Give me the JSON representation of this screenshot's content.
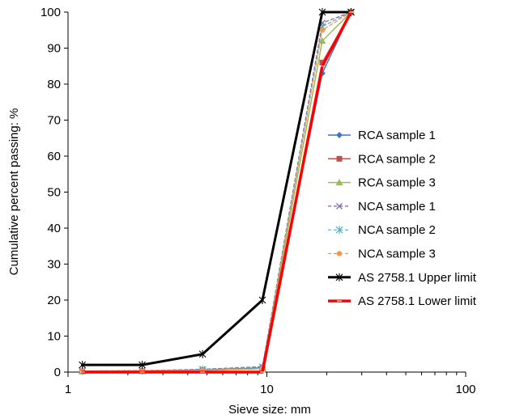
{
  "chart_data": {
    "type": "line",
    "x_scale": "log",
    "xlabel": "Sieve size: mm",
    "ylabel": "Cumulative percent passing: %",
    "xlim": [
      1,
      100
    ],
    "ylim": [
      0,
      100
    ],
    "x_ticks": [
      {
        "value": 1,
        "label": "1"
      },
      {
        "value": 10,
        "label": "10"
      },
      {
        "value": 100,
        "label": "100"
      }
    ],
    "y_ticks": [
      0,
      10,
      20,
      30,
      40,
      50,
      60,
      70,
      80,
      90,
      100
    ],
    "grid": false,
    "legend_position": "right",
    "series": [
      {
        "name": "RCA sample 1",
        "color": "#4472c4",
        "dashed": false,
        "width": 1.5,
        "marker": "diamond",
        "x": [
          1.18,
          2.36,
          4.75,
          9.5,
          19,
          26.5
        ],
        "y": [
          0.2,
          0.3,
          0.6,
          1.2,
          83,
          100
        ]
      },
      {
        "name": "RCA sample 2",
        "color": "#c0504d",
        "dashed": false,
        "width": 1.5,
        "marker": "square",
        "x": [
          1.18,
          2.36,
          4.75,
          9.5,
          19,
          26.5
        ],
        "y": [
          0.2,
          0.3,
          0.5,
          1.0,
          86,
          100
        ]
      },
      {
        "name": "RCA sample 3",
        "color": "#9bbb59",
        "dashed": false,
        "width": 1.5,
        "marker": "triangle",
        "x": [
          1.18,
          2.36,
          4.75,
          9.5,
          19,
          26.5
        ],
        "y": [
          0.2,
          0.3,
          0.5,
          1.0,
          92,
          100
        ]
      },
      {
        "name": "NCA sample 1",
        "color": "#8064a2",
        "dashed": true,
        "width": 1.2,
        "marker": "x",
        "x": [
          1.18,
          2.36,
          4.75,
          9.5,
          19,
          26.5
        ],
        "y": [
          0.3,
          0.4,
          0.8,
          1.5,
          97,
          100
        ]
      },
      {
        "name": "NCA sample 2",
        "color": "#4bacc6",
        "dashed": true,
        "width": 1.2,
        "marker": "star",
        "x": [
          1.18,
          2.36,
          4.75,
          9.5,
          19,
          26.5
        ],
        "y": [
          0.3,
          0.4,
          0.7,
          1.4,
          96,
          100
        ]
      },
      {
        "name": "NCA sample 3",
        "color": "#f79646",
        "dashed": true,
        "width": 1.2,
        "marker": "circle",
        "x": [
          1.18,
          2.36,
          4.75,
          9.5,
          19,
          26.5
        ],
        "y": [
          0.2,
          0.3,
          0.5,
          1.0,
          95,
          100
        ]
      },
      {
        "name": "AS 2758.1 Upper limit",
        "color": "#000000",
        "dashed": false,
        "width": 3,
        "marker": "star",
        "x": [
          1.18,
          2.36,
          4.75,
          9.5,
          19,
          26.5
        ],
        "y": [
          2,
          2,
          5,
          20,
          100,
          100
        ]
      },
      {
        "name": "AS 2758.1 Lower limit",
        "color": "#ff0000",
        "dashed": false,
        "width": 3.5,
        "marker": "dash",
        "x": [
          1.18,
          2.36,
          4.75,
          9.5,
          19,
          26.5
        ],
        "y": [
          0,
          0,
          0,
          0,
          85,
          100
        ]
      }
    ]
  }
}
